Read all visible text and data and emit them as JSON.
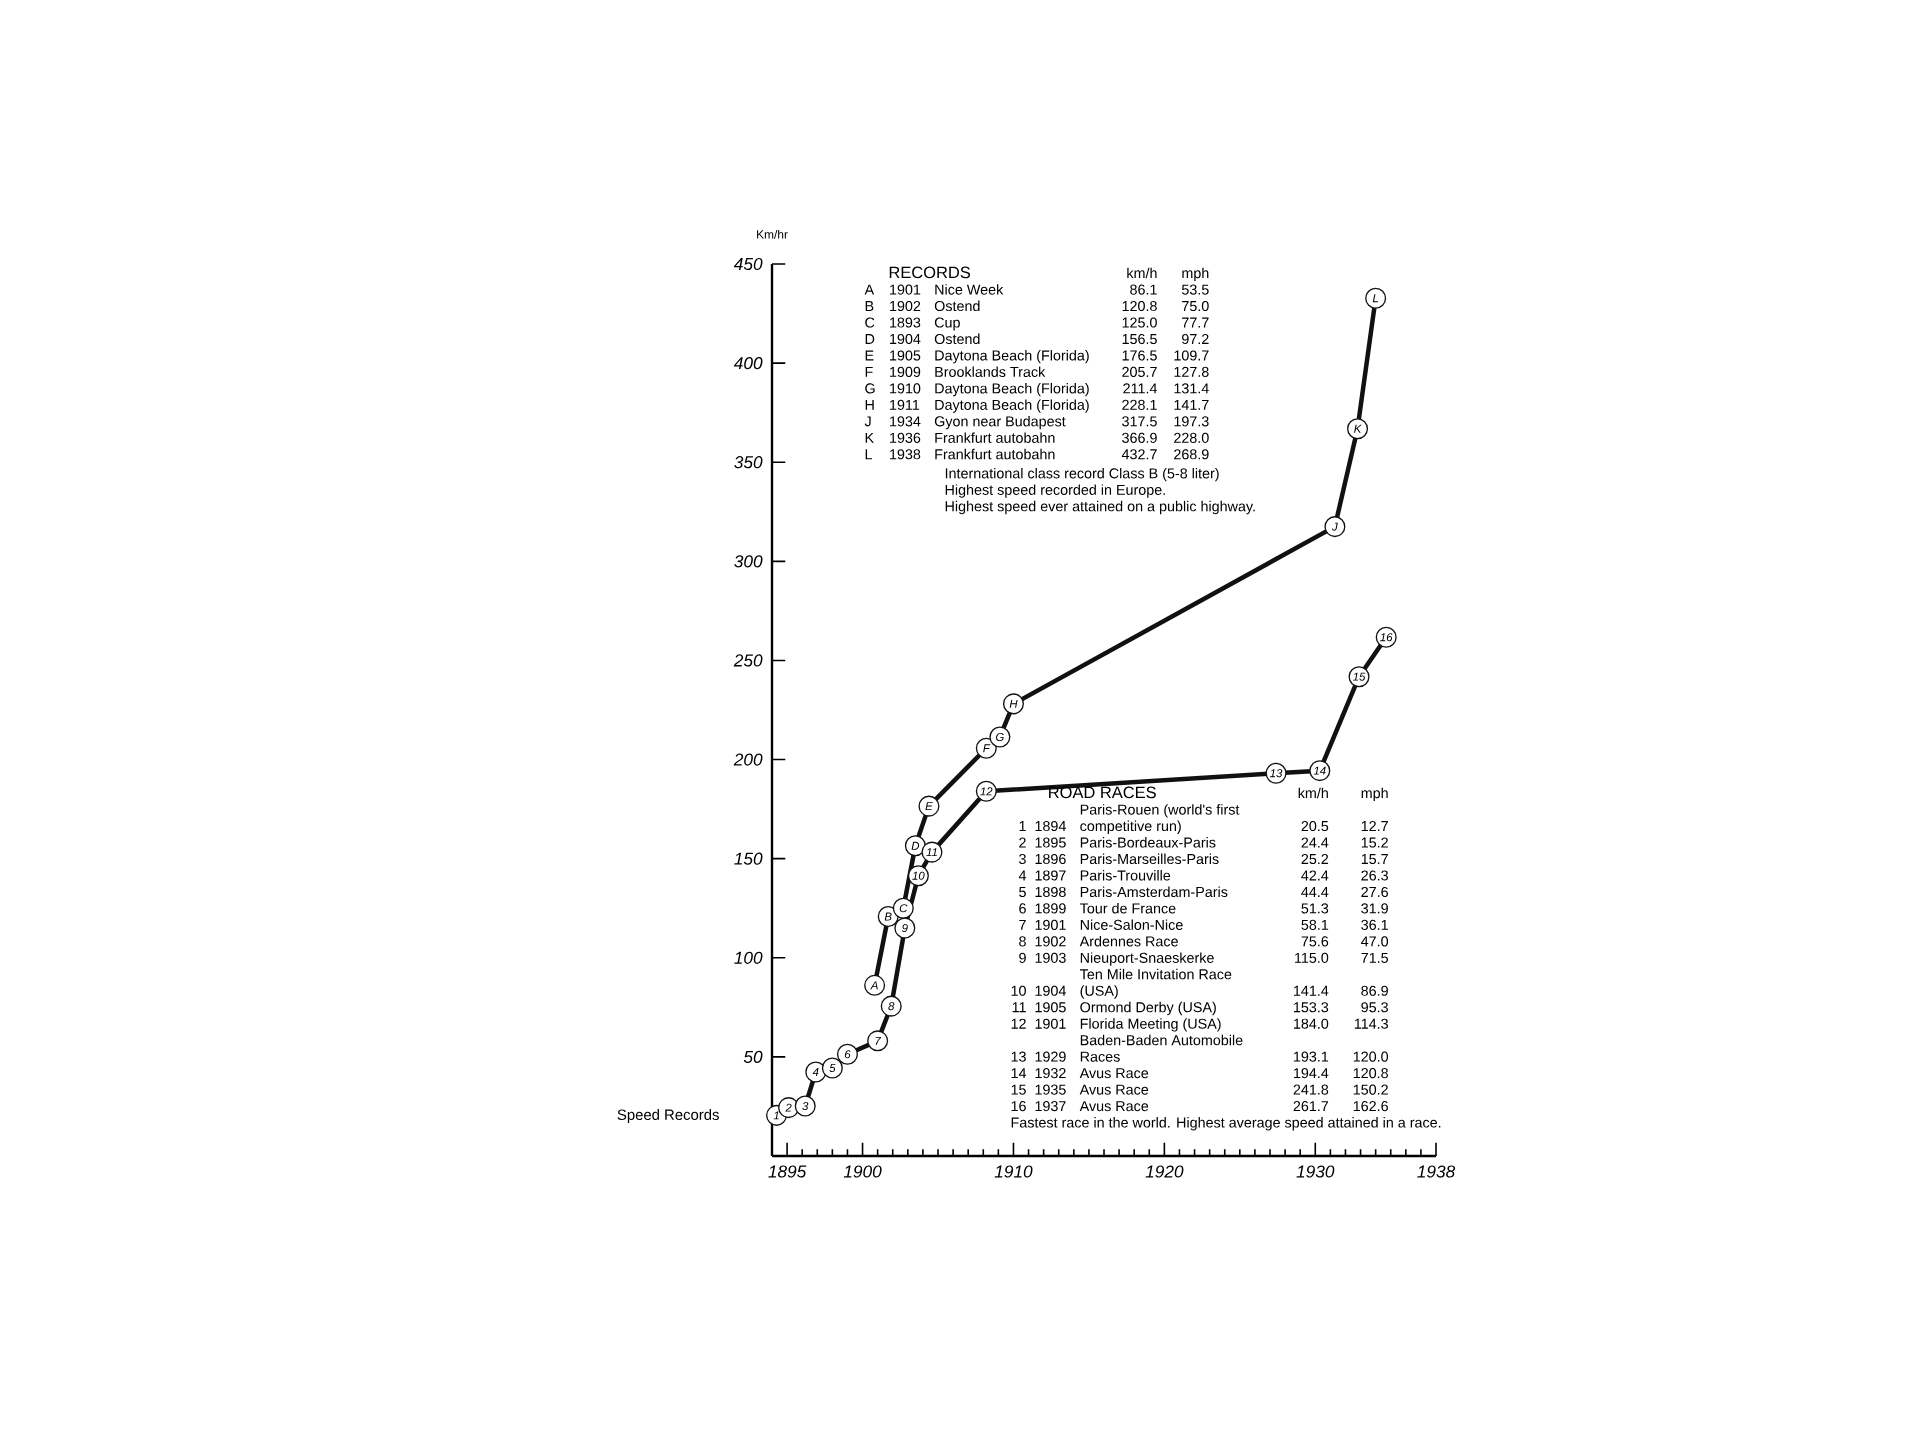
{
  "chart_data": {
    "type": "line",
    "ylabel": "Km/hr",
    "xlim": [
      1894,
      1938
    ],
    "ylim": [
      0,
      450
    ],
    "marker": "circle",
    "xticks": [
      1895,
      {
        "value": 1896,
        "label": null
      },
      {
        "value": 1897,
        "label": null
      },
      {
        "value": 1898,
        "label": null
      },
      {
        "value": 1899,
        "label": null
      },
      1900,
      {
        "value": 1901,
        "label": null
      },
      {
        "value": 1902,
        "label": null
      },
      {
        "value": 1903,
        "label": null
      },
      {
        "value": 1904,
        "label": null
      },
      {
        "value": 1905,
        "label": null
      },
      {
        "value": 1906,
        "label": null
      },
      {
        "value": 1907,
        "label": null
      },
      {
        "value": 1908,
        "label": null
      },
      {
        "value": 1909,
        "label": null
      },
      1910,
      {
        "value": 1911,
        "label": null
      },
      {
        "value": 1912,
        "label": null
      },
      {
        "value": 1913,
        "label": null
      },
      {
        "value": 1914,
        "label": null
      },
      {
        "value": 1915,
        "label": null
      },
      {
        "value": 1916,
        "label": null
      },
      {
        "value": 1917,
        "label": null
      },
      {
        "value": 1918,
        "label": null
      },
      {
        "value": 1919,
        "label": null
      },
      1920,
      {
        "value": 1921,
        "label": null
      },
      {
        "value": 1922,
        "label": null
      },
      {
        "value": 1923,
        "label": null
      },
      {
        "value": 1924,
        "label": null
      },
      {
        "value": 1925,
        "label": null
      },
      {
        "value": 1926,
        "label": null
      },
      {
        "value": 1927,
        "label": null
      },
      {
        "value": 1928,
        "label": null
      },
      {
        "value": 1929,
        "label": null
      },
      1930,
      {
        "value": 1931,
        "label": null
      },
      {
        "value": 1932,
        "label": null
      },
      {
        "value": 1933,
        "label": null
      },
      {
        "value": 1934,
        "label": null
      },
      {
        "value": 1935,
        "label": null
      },
      {
        "value": 1936,
        "label": null
      },
      {
        "value": 1937,
        "label": null
      },
      1938
    ],
    "yticks": [
      50,
      100,
      150,
      200,
      250,
      300,
      350,
      400,
      450
    ],
    "series": [
      {
        "color": "#111111",
        "x": [
          1900.8,
          1901.7,
          1902.7,
          1903.5,
          1904.4,
          1908.2,
          1909.1,
          1910.0,
          1931.3,
          1932.8,
          1934.0
        ],
        "values": [
          86.1,
          120.8,
          125.0,
          156.5,
          176.5,
          205.7,
          211.4,
          228.1,
          317.5,
          366.9,
          432.7
        ]
      },
      {
        "color": "#111111",
        "x": [
          1894.3,
          1895.1,
          1896.2,
          1896.9,
          1898.0,
          1899.0,
          1901.0,
          1901.9,
          1902.8,
          1903.7,
          1904.6,
          1908.2,
          1927.4,
          1930.3,
          1932.9,
          1934.7
        ],
        "values": [
          20.5,
          24.4,
          25.2,
          42.4,
          44.4,
          51.3,
          58.1,
          75.6,
          115.0,
          141.4,
          153.3,
          184.0,
          193.1,
          194.4,
          241.8,
          261.7
        ]
      }
    ],
    "annotations": [
      "Speed Records",
      "RECORDS",
      "km/h",
      "mph",
      "A",
      "1901",
      "Nice Week",
      "86.1",
      "53.5",
      "B",
      "1902",
      "Ostend",
      "120.8",
      "75.0",
      "C",
      "1893",
      "Cup",
      "125.0",
      "77.7",
      "D",
      "1904",
      "Ostend",
      "156.5",
      "97.2",
      "E",
      "1905",
      "Daytona Beach (Florida)",
      "176.5",
      "109.7",
      "F",
      "1909",
      "Brooklands Track",
      "205.7",
      "127.8",
      "G",
      "1910",
      "Daytona Beach (Florida)",
      "211.4",
      "131.4",
      "H",
      "1911",
      "Daytona Beach (Florida)",
      "228.1",
      "141.7",
      "J",
      "1934",
      "Gyon near Budapest",
      "317.5",
      "197.3",
      "K",
      "1936",
      "Frankfurt autobahn",
      "366.9",
      "228.0",
      "L",
      "1938",
      "Frankfurt autobahn",
      "432.7",
      "268.9",
      "International class record Class B (5-8 liter)",
      "Highest speed recorded in Europe.",
      "Highest speed ever attained on a public highway.",
      "ROAD RACES",
      "km/h",
      "mph",
      "1",
      "1894",
      "Paris-Rouen (world's first competitive run)",
      "20.5",
      "12.7",
      "2",
      "1895",
      "Paris-Bordeaux-Paris",
      "24.4",
      "15.2",
      "3",
      "1896",
      "Paris-Marseilles-Paris",
      "25.2",
      "15.7",
      "4",
      "1897",
      "Paris-Trouville",
      "42.4",
      "26.3",
      "5",
      "1898",
      "Paris-Amsterdam-Paris",
      "44.4",
      "27.6",
      "6",
      "1899",
      "Tour de France",
      "51.3",
      "31.9",
      "7",
      "1901",
      "Nice-Salon-Nice",
      "58.1",
      "36.1",
      "8",
      "1902",
      "Ardennes Race",
      "75.6",
      "47.0",
      "9",
      "1903",
      "Nieuport-Snaeskerke",
      "115.0",
      "71.5",
      "10",
      "1904",
      "Ten Mile Invitation Race (USA)",
      "141.4",
      "86.9",
      "11",
      "1905",
      "Ormond Derby (USA)",
      "153.3",
      "95.3",
      "12",
      "1901",
      "Florida Meeting (USA)",
      "184.0",
      "114.3",
      "13",
      "1929",
      "Baden-Baden Automobile Races",
      "193.1",
      "120.0",
      "14",
      "1932",
      "Avus Race",
      "194.4",
      "120.8",
      "15",
      "1935",
      "Avus Race",
      "241.8",
      "150.2",
      "16",
      "1937",
      "Avus Race",
      "261.7",
      "162.6",
      "Fastest race in the world. Highest average speed attained in a race.",
      {
        "text": "A",
        "x": 1900.8,
        "y": 86.1
      },
      {
        "text": "B",
        "x": 1901.7,
        "y": 120.8
      },
      {
        "text": "C",
        "x": 1902.7,
        "y": 125.0
      },
      {
        "text": "D",
        "x": 1903.5,
        "y": 156.5
      },
      {
        "text": "E",
        "x": 1904.4,
        "y": 176.5
      },
      {
        "text": "F",
        "x": 1908.2,
        "y": 205.7
      },
      {
        "text": "G",
        "x": 1909.1,
        "y": 211.4
      },
      {
        "text": "H",
        "x": 1910.0,
        "y": 228.1
      },
      {
        "text": "J",
        "x": 1931.3,
        "y": 317.5
      },
      {
        "text": "K",
        "x": 1932.8,
        "y": 366.9
      },
      {
        "text": "L",
        "x": 1934.0,
        "y": 432.7
      },
      {
        "text": "1",
        "x": 1894.3,
        "y": 20.5
      },
      {
        "text": "2",
        "x": 1895.1,
        "y": 24.4
      },
      {
        "text": "3",
        "x": 1896.2,
        "y": 25.2
      },
      {
        "text": "4",
        "x": 1896.9,
        "y": 42.4
      },
      {
        "text": "5",
        "x": 1898.0,
        "y": 44.4
      },
      {
        "text": "6",
        "x": 1899.0,
        "y": 51.3
      },
      {
        "text": "7",
        "x": 1901.0,
        "y": 58.1
      },
      {
        "text": "8",
        "x": 1901.9,
        "y": 75.6
      },
      {
        "text": "9",
        "x": 1902.8,
        "y": 115.0
      },
      {
        "text": "10",
        "x": 1903.7,
        "y": 141.4
      },
      {
        "text": "11",
        "x": 1904.6,
        "y": 153.3
      },
      {
        "text": "12",
        "x": 1908.2,
        "y": 184.0
      },
      {
        "text": "13",
        "x": 1927.4,
        "y": 193.1
      },
      {
        "text": "14",
        "x": 1930.3,
        "y": 194.4
      },
      {
        "text": "15",
        "x": 1932.9,
        "y": 241.8
      },
      {
        "text": "16",
        "x": 1934.7,
        "y": 261.7
      }
    ]
  }
}
